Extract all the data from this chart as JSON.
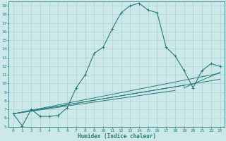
{
  "xlabel": "Humidex (Indice chaleur)",
  "xlim": [
    -0.5,
    23.5
  ],
  "ylim": [
    5,
    19.5
  ],
  "xticks": [
    0,
    1,
    2,
    3,
    4,
    5,
    6,
    7,
    8,
    9,
    10,
    11,
    12,
    13,
    14,
    15,
    16,
    17,
    18,
    19,
    20,
    21,
    22,
    23
  ],
  "yticks": [
    5,
    6,
    7,
    8,
    9,
    10,
    11,
    12,
    13,
    14,
    15,
    16,
    17,
    18,
    19
  ],
  "bg_color": "#cce8e8",
  "line_color": "#2a7a7a",
  "grid_color": "#aad4d4",
  "main_x": [
    0,
    1,
    2,
    3,
    4,
    5,
    6,
    7,
    8,
    9,
    10,
    11,
    12,
    13,
    14,
    15,
    16,
    17,
    18,
    19,
    20,
    21,
    22,
    23
  ],
  "main_y": [
    6.5,
    5.1,
    7.0,
    6.2,
    6.2,
    6.3,
    7.2,
    9.5,
    11.0,
    13.5,
    14.2,
    16.3,
    18.2,
    19.0,
    19.3,
    18.5,
    18.2,
    14.2,
    13.2,
    11.5,
    9.5,
    11.5,
    12.3,
    12.0
  ],
  "ref_line1_x": [
    0,
    23
  ],
  "ref_line1_y": [
    6.5,
    11.2
  ],
  "ref_line2_x": [
    0,
    23
  ],
  "ref_line2_y": [
    6.5,
    10.5
  ],
  "ref_line3_x": [
    0,
    19,
    19,
    23
  ],
  "ref_line3_y": [
    6.5,
    9.8,
    9.5,
    11.3
  ],
  "extra_line_x": [
    0,
    18
  ],
  "extra_line_y": [
    6.5,
    9.2
  ]
}
